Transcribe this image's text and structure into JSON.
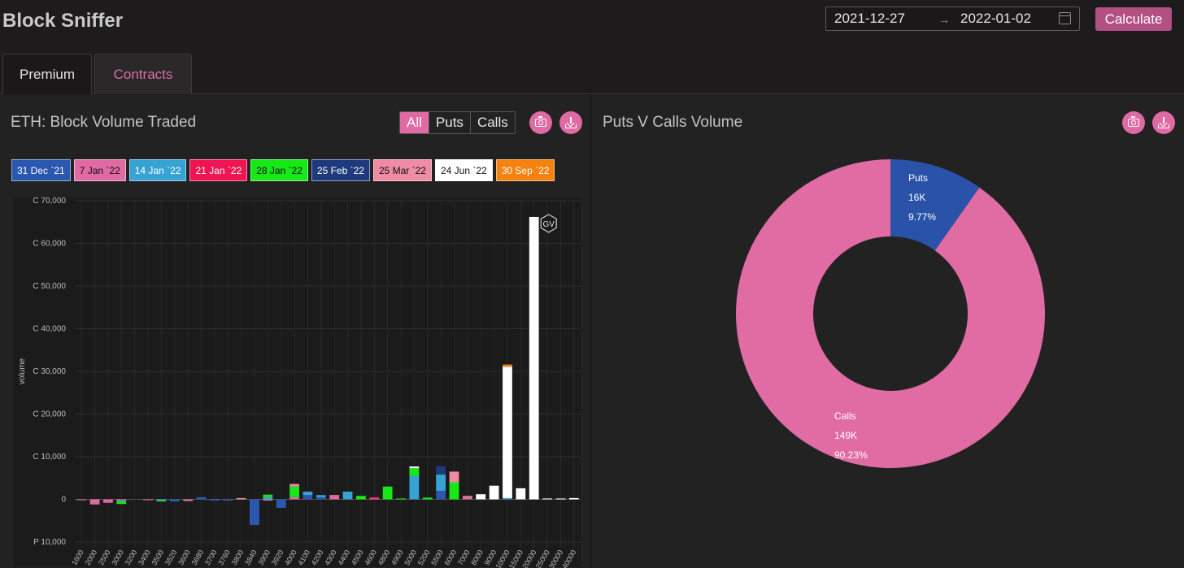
{
  "app": {
    "title": "Block Sniffer"
  },
  "date_range": {
    "start": "2021-12-27",
    "separator": "→",
    "end": "2022-01-02"
  },
  "calculate_label": "Calculate",
  "tabs": [
    {
      "label": "Premium"
    },
    {
      "label": "Contracts"
    }
  ],
  "left_panel": {
    "title": "ETH: Block Volume Traded",
    "filter": {
      "options": [
        "All",
        "Puts",
        "Calls"
      ],
      "selected": "All"
    }
  },
  "right_panel": {
    "title": "Puts V Calls Volume"
  },
  "colors": {
    "accent": "#e06aa3",
    "button": "#b24f83"
  },
  "chart_data": [
    {
      "type": "bar",
      "stacked": true,
      "title": "ETH: Block Volume Traded",
      "xlabel": "",
      "ylabel": "volume",
      "ylim": [
        -10000,
        70000
      ],
      "y_ticks": [
        {
          "value": 70000,
          "label": "C 70,000"
        },
        {
          "value": 60000,
          "label": "C 60,000"
        },
        {
          "value": 50000,
          "label": "C 50,000"
        },
        {
          "value": 40000,
          "label": "C 40,000"
        },
        {
          "value": 30000,
          "label": "C 30,000"
        },
        {
          "value": 20000,
          "label": "C 20,000"
        },
        {
          "value": 10000,
          "label": "C 10,000"
        },
        {
          "value": 0,
          "label": "0"
        },
        {
          "value": -10000,
          "label": "P 10,000"
        }
      ],
      "categories": [
        "1600",
        "2000",
        "2500",
        "3000",
        "3200",
        "3400",
        "3500",
        "3520",
        "3600",
        "3680",
        "3700",
        "3760",
        "3800",
        "3840",
        "3900",
        "3920",
        "4000",
        "4100",
        "4200",
        "4300",
        "4400",
        "4500",
        "4600",
        "4800",
        "4900",
        "5000",
        "5200",
        "5500",
        "6000",
        "7000",
        "8000",
        "9000",
        "10000",
        "15000",
        "20000",
        "25000",
        "30000",
        "40000"
      ],
      "series": [
        {
          "name": "31 Dec `21",
          "color": "#2a58b0",
          "values": [
            0,
            0,
            0,
            0,
            0,
            0,
            0,
            -500,
            0,
            500,
            -300,
            -300,
            0,
            -6000,
            0,
            -2000,
            0,
            1000,
            500,
            0,
            0,
            0,
            0,
            0,
            0,
            0,
            0,
            2000,
            0,
            0,
            0,
            0,
            0,
            0,
            0,
            0,
            0,
            0
          ]
        },
        {
          "name": "7 Jan `22",
          "color": "#e06aa3",
          "values": [
            -200,
            -1200,
            -800,
            -300,
            0,
            -200,
            0,
            0,
            -400,
            0,
            0,
            0,
            0,
            0,
            -300,
            0,
            500,
            0,
            0,
            800,
            0,
            0,
            200,
            0,
            0,
            0,
            0,
            0,
            0,
            500,
            0,
            0,
            0,
            0,
            0,
            0,
            0,
            0
          ]
        },
        {
          "name": "14 Jan `22",
          "color": "#37a3d4",
          "values": [
            0,
            0,
            0,
            -200,
            0,
            0,
            -300,
            0,
            0,
            0,
            0,
            0,
            0,
            0,
            500,
            0,
            0,
            800,
            500,
            0,
            1800,
            0,
            0,
            0,
            0,
            5500,
            0,
            3800,
            0,
            0,
            0,
            0,
            300,
            0,
            0,
            0,
            0,
            0
          ]
        },
        {
          "name": "21 Jan `22",
          "color": "#f01452",
          "values": [
            0,
            0,
            0,
            0,
            0,
            0,
            0,
            0,
            0,
            0,
            0,
            0,
            0,
            0,
            0,
            0,
            0,
            0,
            0,
            0,
            0,
            0,
            300,
            0,
            0,
            0,
            0,
            0,
            0,
            0,
            0,
            0,
            0,
            0,
            0,
            0,
            0,
            0
          ]
        },
        {
          "name": "28 Jan `22",
          "color": "#17e817",
          "values": [
            0,
            0,
            0,
            -600,
            0,
            0,
            -200,
            0,
            0,
            0,
            0,
            0,
            0,
            0,
            600,
            0,
            2500,
            0,
            0,
            0,
            0,
            800,
            0,
            3000,
            200,
            1800,
            400,
            0,
            4000,
            0,
            0,
            0,
            0,
            0,
            0,
            0,
            0,
            0
          ]
        },
        {
          "name": "25 Feb `22",
          "color": "#1e3a7c",
          "values": [
            0,
            0,
            0,
            0,
            0,
            0,
            0,
            0,
            0,
            0,
            0,
            0,
            0,
            0,
            0,
            0,
            0,
            0,
            0,
            0,
            0,
            0,
            0,
            0,
            0,
            0,
            0,
            2000,
            0,
            0,
            0,
            0,
            0,
            0,
            0,
            0,
            0,
            0
          ]
        },
        {
          "name": "25 Mar `22",
          "color": "#ef8ca3",
          "values": [
            0,
            0,
            0,
            0,
            0,
            0,
            0,
            0,
            0,
            0,
            0,
            0,
            300,
            0,
            0,
            0,
            600,
            0,
            0,
            200,
            0,
            0,
            0,
            0,
            0,
            0,
            0,
            0,
            2500,
            300,
            0,
            0,
            0,
            0,
            0,
            0,
            0,
            0
          ]
        },
        {
          "name": "24 Jun `22",
          "color": "#ffffff",
          "values": [
            0,
            0,
            0,
            0,
            0,
            0,
            0,
            0,
            0,
            0,
            0,
            0,
            0,
            0,
            0,
            0,
            0,
            0,
            0,
            0,
            0,
            0,
            0,
            0,
            0,
            400,
            0,
            0,
            0,
            0,
            1200,
            3200,
            30800,
            2600,
            66200,
            200,
            200,
            300
          ]
        },
        {
          "name": "30 Sep `22",
          "color": "#f5820f",
          "values": [
            0,
            0,
            0,
            0,
            0,
            0,
            0,
            0,
            0,
            0,
            0,
            0,
            0,
            0,
            0,
            0,
            0,
            0,
            0,
            0,
            0,
            0,
            0,
            0,
            0,
            0,
            0,
            0,
            0,
            0,
            0,
            0,
            500,
            0,
            0,
            0,
            0,
            0
          ]
        }
      ],
      "legend": "top",
      "grid": true,
      "watermark": "GV"
    },
    {
      "type": "pie",
      "donut": true,
      "title": "Puts V Calls Volume",
      "slices": [
        {
          "label": "Puts",
          "value_label": "16K",
          "percent_label": "9.77%",
          "value": 16000,
          "percent": 9.77,
          "color": "#2a52a8"
        },
        {
          "label": "Calls",
          "value_label": "149K",
          "percent_label": "90.23%",
          "value": 149000,
          "percent": 90.23,
          "color": "#e06ca3"
        }
      ]
    }
  ]
}
